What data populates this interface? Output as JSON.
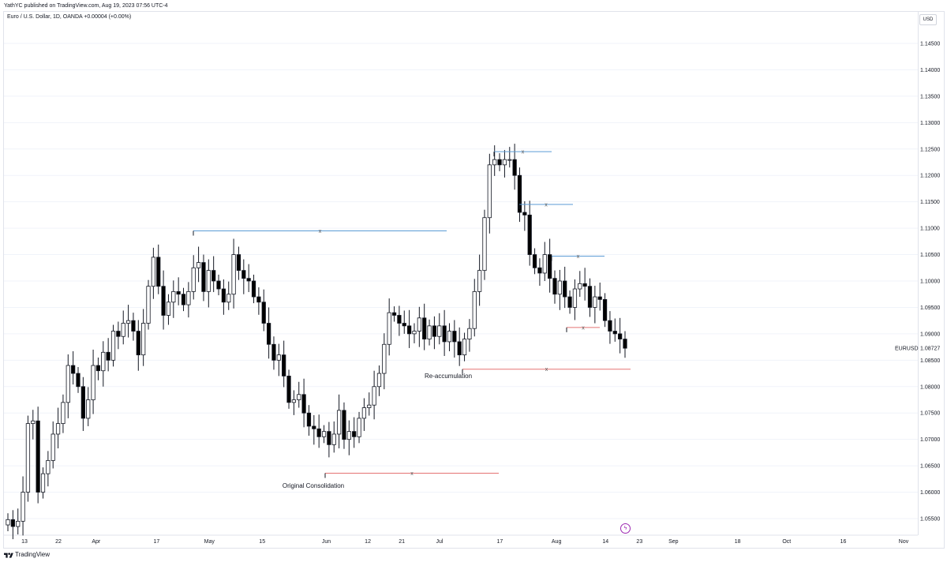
{
  "header": {
    "published": "YathYC published on TradingView.com, Aug 19, 2023 07:56 UTC-4",
    "symbol_line": "Euro / U.S. Dollar, 1D, OANDA  +0.00004 (+0.00%)",
    "currency": "USD"
  },
  "footer": {
    "brand": "TradingView",
    "logo_icon": "tradingview-logo-icon"
  },
  "chart_data": {
    "type": "candlestick",
    "symbol": "EURUSD",
    "last_price": "1.08727",
    "ylim": [
      1.0515,
      1.1515
    ],
    "y_ticks": [
      "1.14500",
      "1.14000",
      "1.13500",
      "1.13000",
      "1.12500",
      "1.12000",
      "1.11500",
      "1.11000",
      "1.10500",
      "1.10000",
      "1.09500",
      "1.09000",
      "1.08500",
      "1.08000",
      "1.07500",
      "1.07000",
      "1.06500",
      "1.06000",
      "1.05500"
    ],
    "x_ticks": [
      {
        "label": "13",
        "date": "2023-03-13"
      },
      {
        "label": "22",
        "date": "2023-03-22"
      },
      {
        "label": "Apr",
        "date": "2023-04-01"
      },
      {
        "label": "17",
        "date": "2023-04-17"
      },
      {
        "label": "May",
        "date": "2023-05-01"
      },
      {
        "label": "15",
        "date": "2023-05-15"
      },
      {
        "label": "Jun",
        "date": "2023-06-01"
      },
      {
        "label": "12",
        "date": "2023-06-12"
      },
      {
        "label": "21",
        "date": "2023-06-21"
      },
      {
        "label": "Jul",
        "date": "2023-07-01"
      },
      {
        "label": "17",
        "date": "2023-07-17"
      },
      {
        "label": "Aug",
        "date": "2023-08-01"
      },
      {
        "label": "14",
        "date": "2023-08-14"
      },
      {
        "label": "23",
        "date": "2023-08-23"
      },
      {
        "label": "Sep",
        "date": "2023-09-01"
      },
      {
        "label": "18",
        "date": "2023-09-18"
      },
      {
        "label": "Oct",
        "date": "2023-10-01"
      },
      {
        "label": "16",
        "date": "2023-10-16"
      },
      {
        "label": "Nov",
        "date": "2023-11-01"
      }
    ],
    "closes": [
      1.0548,
      1.0535,
      1.0545,
      1.06,
      1.073,
      1.0735,
      1.06,
      1.0635,
      1.066,
      1.071,
      1.073,
      1.077,
      1.084,
      1.0825,
      1.08,
      1.074,
      1.0775,
      1.084,
      1.083,
      1.0865,
      1.085,
      1.0905,
      1.0895,
      1.092,
      1.0925,
      1.0905,
      1.086,
      1.092,
      1.099,
      1.1045,
      1.099,
      1.0935,
      1.096,
      1.098,
      1.0975,
      1.0955,
      1.098,
      1.1025,
      1.1035,
      1.098,
      1.102,
      1.1,
      1.0985,
      1.096,
      1.0975,
      1.105,
      1.102,
      1.1005,
      1.1,
      1.097,
      1.096,
      1.092,
      1.088,
      1.085,
      1.086,
      1.082,
      1.077,
      1.0775,
      1.0785,
      1.075,
      1.0725,
      1.072,
      1.0705,
      1.0715,
      1.069,
      1.071,
      1.0755,
      1.07,
      1.0715,
      1.0705,
      1.074,
      1.076,
      1.0765,
      1.08,
      1.0825,
      1.088,
      1.094,
      1.0935,
      1.092,
      1.0915,
      1.09,
      1.0905,
      1.093,
      1.089,
      1.0915,
      1.0895,
      1.0915,
      1.0885,
      1.0905,
      1.0885,
      1.086,
      1.089,
      1.091,
      1.098,
      1.102,
      1.112,
      1.122,
      1.123,
      1.122,
      1.123,
      1.123,
      1.12,
      1.113,
      1.1125,
      1.105,
      1.1025,
      1.1015,
      1.105,
      1.1005,
      1.0975,
      1.1,
      1.097,
      1.095,
      1.0985,
      1.0995,
      1.099,
      1.095,
      1.097,
      1.0965,
      1.0925,
      1.0905,
      1.09,
      1.089,
      1.08727
    ],
    "horizontal_levels": [
      {
        "price": 1.1095,
        "color": "#5b9bd5",
        "marker": "x"
      },
      {
        "price": 1.0636,
        "color": "#e57373",
        "marker": "x"
      },
      {
        "price": 1.0833,
        "color": "#e57373",
        "marker": "x"
      },
      {
        "price": 1.1245,
        "color": "#5b9bd5",
        "marker": "x"
      },
      {
        "price": 1.1145,
        "color": "#5b9bd5",
        "marker": "x"
      },
      {
        "price": 1.1047,
        "color": "#5b9bd5",
        "marker": "x"
      },
      {
        "price": 1.0912,
        "color": "#e57373",
        "marker": "x"
      }
    ],
    "annotations": [
      "Original Consolidation",
      "Re-accumulation"
    ],
    "colors": {
      "up": "#ffffff",
      "down": "#000000",
      "wick": "#131722",
      "grid": "#f0f3fa"
    }
  }
}
